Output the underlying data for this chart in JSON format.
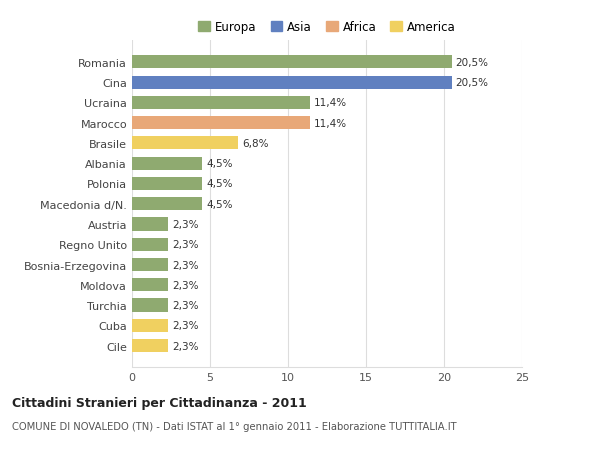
{
  "countries": [
    "Cile",
    "Cuba",
    "Turchia",
    "Moldova",
    "Bosnia-Erzegovina",
    "Regno Unito",
    "Austria",
    "Macedonia d/N.",
    "Polonia",
    "Albania",
    "Brasile",
    "Marocco",
    "Ucraina",
    "Cina",
    "Romania"
  ],
  "values": [
    2.3,
    2.3,
    2.3,
    2.3,
    2.3,
    2.3,
    2.3,
    4.5,
    4.5,
    4.5,
    6.8,
    11.4,
    11.4,
    20.5,
    20.5
  ],
  "labels": [
    "2,3%",
    "2,3%",
    "2,3%",
    "2,3%",
    "2,3%",
    "2,3%",
    "2,3%",
    "4,5%",
    "4,5%",
    "4,5%",
    "6,8%",
    "11,4%",
    "11,4%",
    "20,5%",
    "20,5%"
  ],
  "colors": [
    "#f0d060",
    "#f0d060",
    "#8faa70",
    "#8faa70",
    "#8faa70",
    "#8faa70",
    "#8faa70",
    "#8faa70",
    "#8faa70",
    "#8faa70",
    "#f0d060",
    "#e8a878",
    "#8faa70",
    "#6080c0",
    "#8faa70"
  ],
  "continent_colors": {
    "Europa": "#8faa70",
    "Asia": "#6080c0",
    "Africa": "#e8a878",
    "America": "#f0d060"
  },
  "title_bold": "Cittadini Stranieri per Cittadinanza - 2011",
  "subtitle": "COMUNE DI NOVALEDO (TN) - Dati ISTAT al 1° gennaio 2011 - Elaborazione TUTTITALIA.IT",
  "xlim": [
    0,
    25
  ],
  "xticks": [
    0,
    5,
    10,
    15,
    20,
    25
  ],
  "bg_color": "#ffffff",
  "grid_color": "#dddddd",
  "bar_height": 0.65
}
